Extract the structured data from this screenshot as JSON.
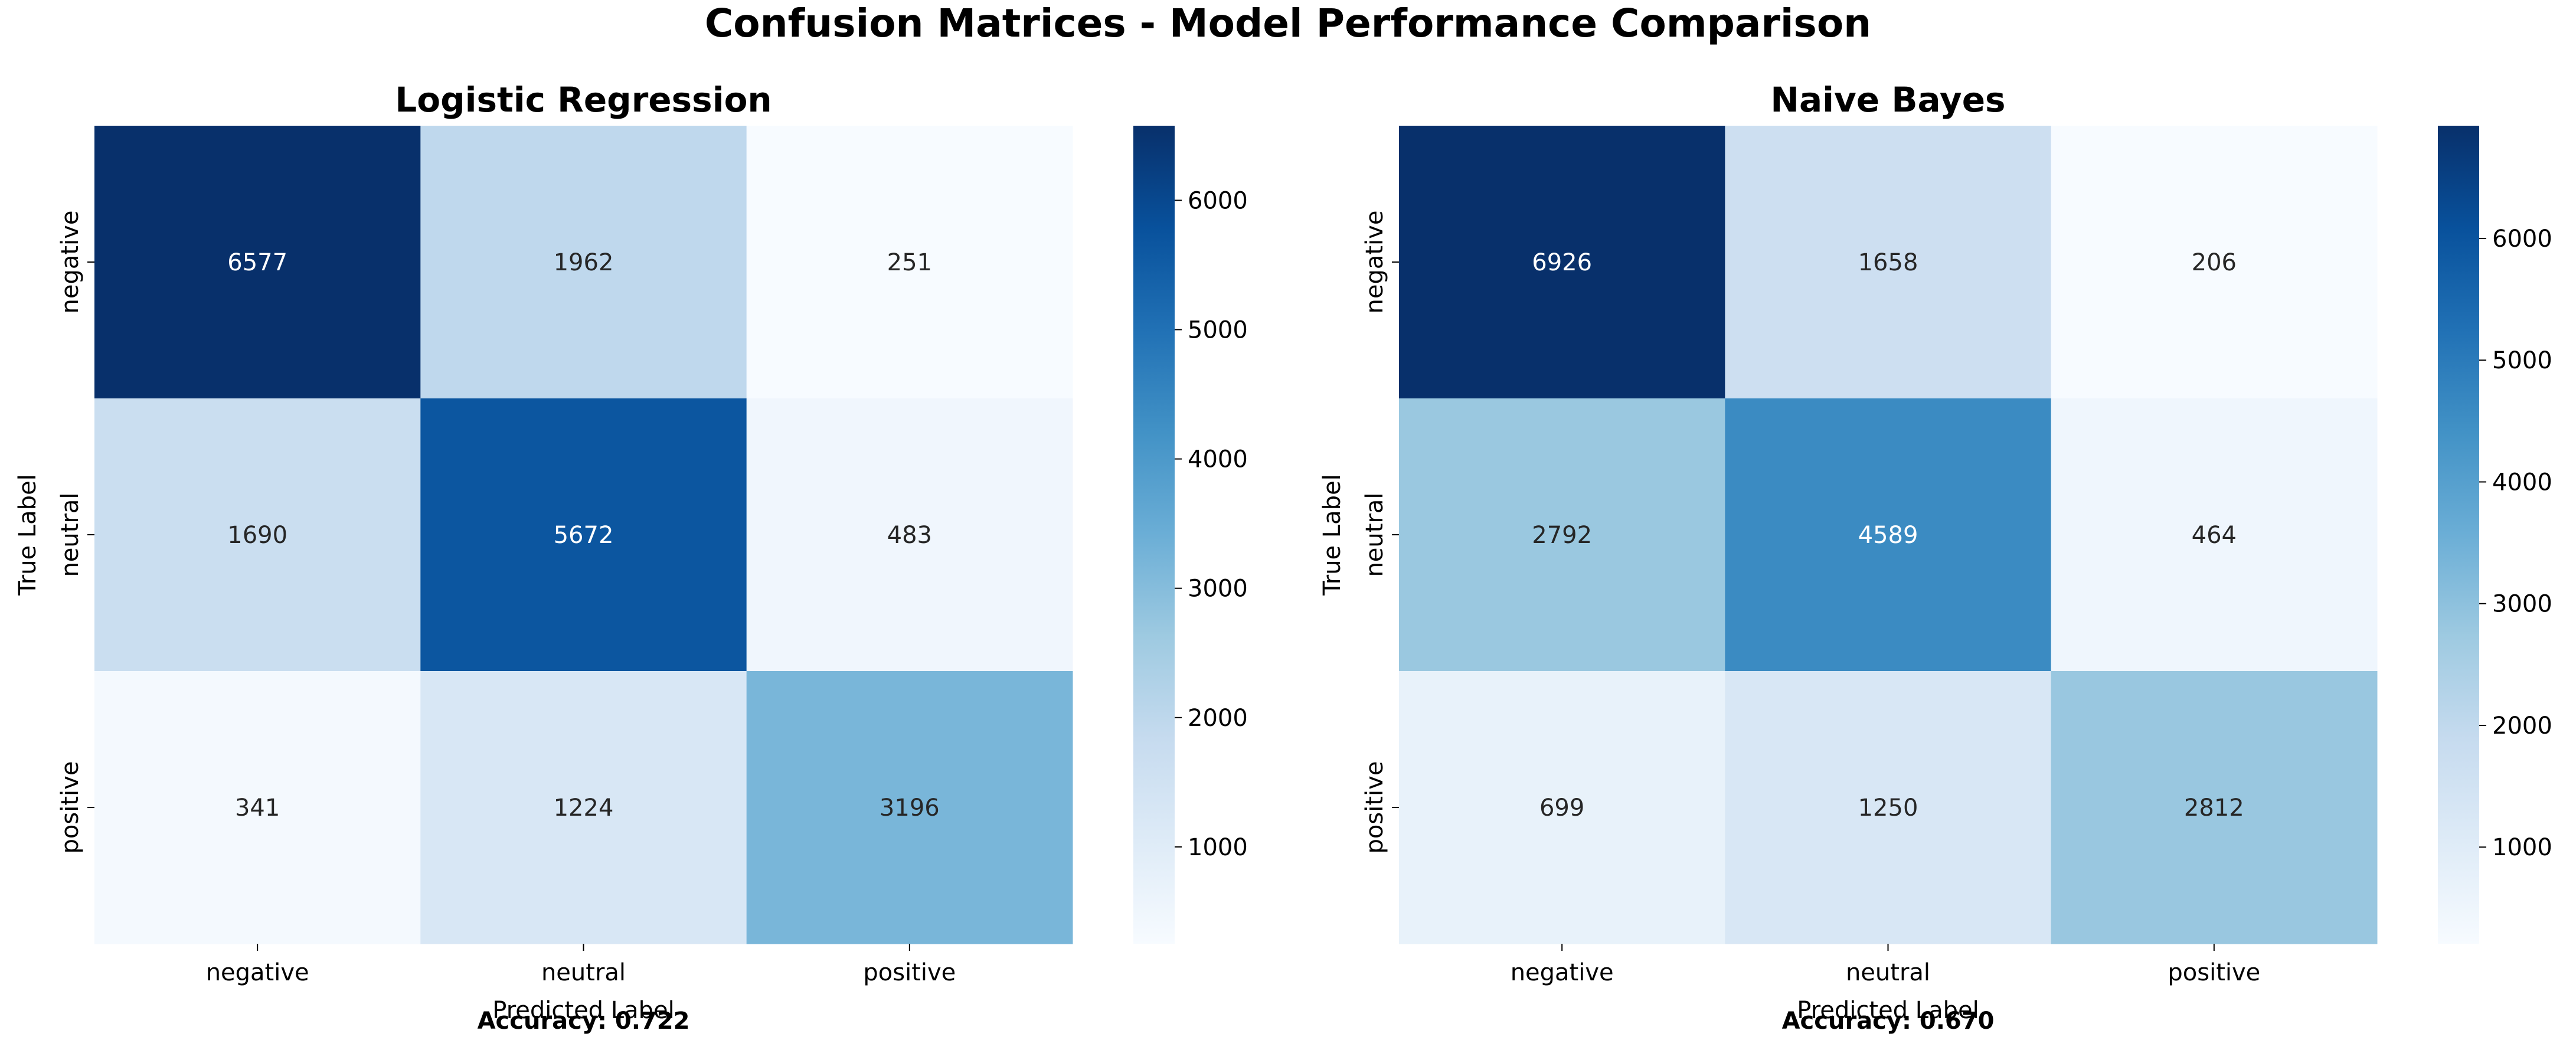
{
  "suptitle": "Confusion Matrices - Model Performance Comparison",
  "chart_data": [
    {
      "type": "heatmap",
      "title": "Logistic Regression",
      "xlabel": "Predicted Label",
      "ylabel": "True Label",
      "x_categories": [
        "negative",
        "neutral",
        "positive"
      ],
      "y_categories": [
        "negative",
        "neutral",
        "positive"
      ],
      "values": [
        [
          6577,
          1962,
          251
        ],
        [
          1690,
          5672,
          483
        ],
        [
          341,
          1224,
          3196
        ]
      ],
      "colormap": "Blues",
      "vmin": 251,
      "vmax": 6577,
      "colorbar_ticks": [
        1000,
        2000,
        3000,
        4000,
        5000,
        6000
      ],
      "footer": "Accuracy: 0.722"
    },
    {
      "type": "heatmap",
      "title": "Naive Bayes",
      "xlabel": "Predicted Label",
      "ylabel": "True Label",
      "x_categories": [
        "negative",
        "neutral",
        "positive"
      ],
      "y_categories": [
        "negative",
        "neutral",
        "positive"
      ],
      "values": [
        [
          6926,
          1658,
          206
        ],
        [
          2792,
          4589,
          464
        ],
        [
          699,
          1250,
          2812
        ]
      ],
      "colormap": "Blues",
      "vmin": 206,
      "vmax": 6926,
      "colorbar_ticks": [
        1000,
        2000,
        3000,
        4000,
        5000,
        6000
      ],
      "footer": "Accuracy: 0.670"
    }
  ]
}
